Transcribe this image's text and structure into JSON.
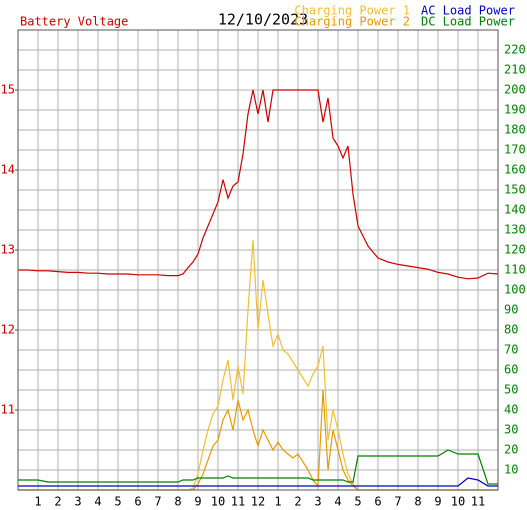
{
  "chart_data": {
    "type": "line",
    "title": "12/10/2023",
    "x": [
      0,
      0.5,
      1,
      1.5,
      2,
      2.5,
      3,
      3.5,
      4,
      4.5,
      5,
      5.5,
      6,
      6.5,
      7,
      7.5,
      8,
      8.25,
      8.5,
      8.75,
      9,
      9.25,
      9.5,
      9.75,
      10,
      10.25,
      10.5,
      10.75,
      11,
      11.25,
      11.5,
      11.75,
      12,
      12.25,
      12.5,
      12.75,
      13,
      13.25,
      13.5,
      13.75,
      14,
      14.25,
      14.5,
      14.75,
      15,
      15.25,
      15.5,
      15.75,
      16,
      16.25,
      16.5,
      16.75,
      17,
      17.5,
      18,
      18.5,
      19,
      19.5,
      20,
      20.5,
      21,
      21.5,
      22,
      22.5,
      23,
      23.5,
      24
    ],
    "xlim": [
      0,
      24
    ],
    "xticks": [
      1,
      2,
      3,
      4,
      5,
      6,
      7,
      8,
      9,
      10,
      11,
      12,
      {
        "value": 13,
        "label": "1"
      },
      {
        "value": 14,
        "label": "2"
      },
      {
        "value": 15,
        "label": "3"
      },
      {
        "value": 16,
        "label": "4"
      },
      {
        "value": 17,
        "label": "5"
      },
      {
        "value": 18,
        "label": "6"
      },
      {
        "value": 19,
        "label": "7"
      },
      {
        "value": 20,
        "label": "8"
      },
      {
        "value": 21,
        "label": "9"
      },
      {
        "value": 22,
        "label": "10"
      },
      {
        "value": 23,
        "label": "11"
      }
    ],
    "ylim": [
      10,
      15.75
    ],
    "yticks": [
      11,
      12,
      13,
      14,
      15
    ],
    "y2lim": [
      0,
      230
    ],
    "y2ticks": [
      10,
      20,
      30,
      40,
      50,
      60,
      70,
      80,
      90,
      100,
      110,
      120,
      130,
      140,
      150,
      160,
      170,
      180,
      190,
      200,
      210,
      220
    ],
    "grid": true,
    "series": [
      {
        "name": "Battery Voltage",
        "color": "#cc0000",
        "values": [
          12.75,
          12.75,
          12.74,
          12.74,
          12.73,
          12.72,
          12.72,
          12.71,
          12.71,
          12.7,
          12.7,
          12.7,
          12.69,
          12.69,
          12.69,
          12.68,
          12.68,
          12.7,
          12.78,
          12.85,
          12.95,
          13.15,
          13.3,
          13.45,
          13.6,
          13.88,
          13.65,
          13.8,
          13.85,
          14.2,
          14.7,
          15,
          14.7,
          15,
          14.6,
          15,
          15,
          15,
          15,
          15,
          15,
          15,
          15,
          15,
          15,
          14.6,
          14.9,
          14.4,
          14.3,
          14.15,
          14.3,
          13.7,
          13.3,
          13.05,
          12.9,
          12.85,
          12.82,
          12.8,
          12.78,
          12.76,
          12.72,
          12.7,
          12.66,
          12.64,
          12.65,
          12.71,
          12.7
        ]
      },
      {
        "name": "Charging Power 1",
        "color": "#f0c030",
        "axis": "y2",
        "values": [
          0,
          0,
          0,
          0,
          0,
          0,
          0,
          0,
          0,
          0,
          0,
          0,
          0,
          0,
          0,
          0,
          0,
          0,
          0,
          1,
          8,
          20,
          30,
          38,
          42,
          55,
          65,
          45,
          62,
          48,
          90,
          125,
          80,
          105,
          88,
          72,
          78,
          70,
          68,
          64,
          60,
          56,
          52,
          58,
          62,
          72,
          25,
          40,
          30,
          18,
          8,
          3,
          0,
          0,
          0,
          0,
          0,
          0,
          0,
          0,
          0,
          0,
          0,
          0,
          0,
          0,
          0
        ]
      },
      {
        "name": "Charging Power 2",
        "color": "#e89a00",
        "axis": "y2",
        "values": [
          0,
          0,
          0,
          0,
          0,
          0,
          0,
          0,
          0,
          0,
          0,
          0,
          0,
          0,
          0,
          0,
          0,
          0,
          0,
          0,
          3,
          8,
          15,
          22,
          25,
          35,
          40,
          30,
          45,
          35,
          40,
          30,
          22,
          30,
          25,
          20,
          24,
          20,
          18,
          16,
          18,
          14,
          10,
          5,
          2,
          50,
          10,
          30,
          20,
          10,
          5,
          2,
          0,
          0,
          0,
          0,
          0,
          0,
          0,
          0,
          0,
          0,
          0,
          0,
          0,
          0,
          0
        ]
      },
      {
        "name": "AC Load Power",
        "color": "#0000c0",
        "axis": "y2",
        "values": [
          2,
          2,
          2,
          2,
          2,
          2,
          2,
          2,
          2,
          2,
          2,
          2,
          2,
          2,
          2,
          2,
          2,
          2,
          2,
          2,
          2,
          2,
          2,
          2,
          2,
          2,
          2,
          2,
          2,
          2,
          2,
          2,
          2,
          2,
          2,
          2,
          2,
          2,
          2,
          2,
          2,
          2,
          2,
          2,
          2,
          2,
          2,
          2,
          2,
          2,
          2,
          2,
          2,
          2,
          2,
          2,
          2,
          2,
          2,
          2,
          2,
          2,
          2,
          6,
          5,
          2,
          2
        ]
      },
      {
        "name": "DC Load Power",
        "color": "#008000",
        "axis": "y2",
        "values": [
          5,
          5,
          5,
          4,
          4,
          4,
          4,
          4,
          4,
          4,
          4,
          4,
          4,
          4,
          4,
          4,
          4,
          5,
          5,
          5,
          6,
          6,
          6,
          6,
          6,
          6,
          7,
          6,
          6,
          6,
          6,
          6,
          6,
          6,
          6,
          6,
          6,
          6,
          6,
          6,
          6,
          6,
          6,
          5,
          5,
          5,
          5,
          5,
          5,
          5,
          4,
          4,
          17,
          17,
          17,
          17,
          17,
          17,
          17,
          17,
          17,
          20,
          18,
          18,
          18,
          3,
          3
        ]
      }
    ]
  }
}
